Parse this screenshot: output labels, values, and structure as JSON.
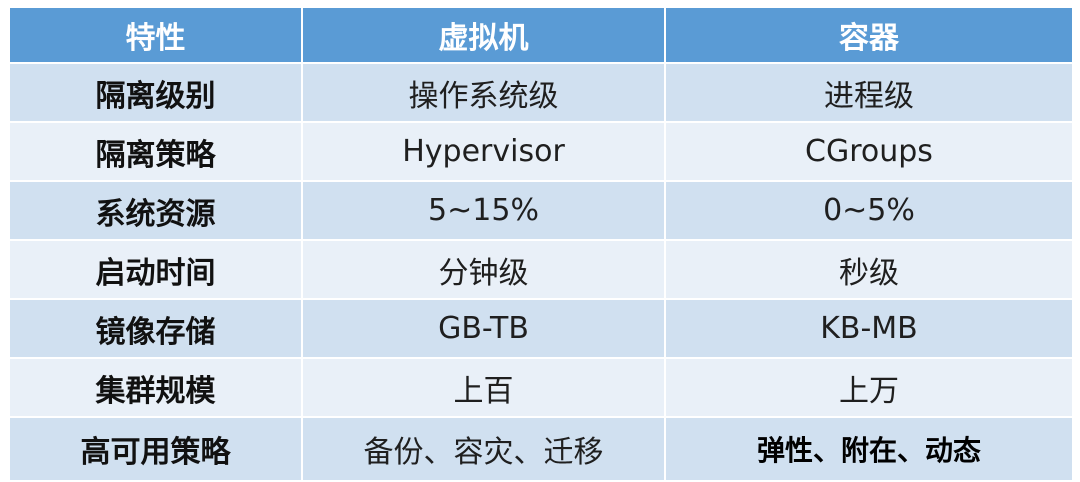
{
  "table": {
    "headers": [
      "特性",
      "虚拟机",
      "容器"
    ],
    "rows": [
      {
        "feature": "隔离级别",
        "vm": "操作系统级",
        "container": "进程级"
      },
      {
        "feature": "隔离策略",
        "vm": "Hypervisor",
        "container": "CGroups"
      },
      {
        "feature": "系统资源",
        "vm": "5~15%",
        "container": "0~5%"
      },
      {
        "feature": "启动时间",
        "vm": "分钟级",
        "container": "秒级"
      },
      {
        "feature": "镜像存储",
        "vm": "GB-TB",
        "container": "KB-MB"
      },
      {
        "feature": "集群规模",
        "vm": "上百",
        "container": "上万"
      },
      {
        "feature": "高可用策略",
        "vm": "备份、容灾、迁移",
        "container": "弹性、附在、动态"
      }
    ]
  },
  "colors": {
    "header_bg": "#5a9bd5",
    "header_text": "#ffffff",
    "row_odd_bg": "#d0e0f0",
    "row_even_bg": "#e9f0f8",
    "border": "#ffffff"
  }
}
